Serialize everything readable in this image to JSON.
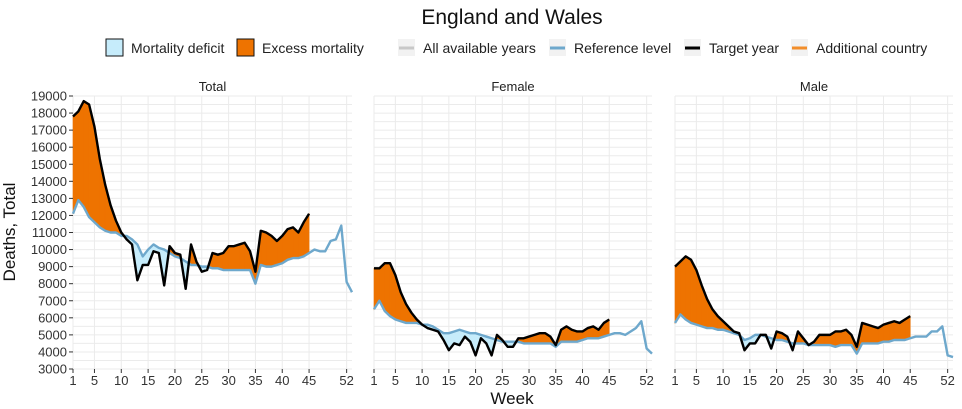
{
  "chart_data": {
    "type": "area",
    "title": "England and Wales",
    "xlabel": "Week",
    "ylabel": "Deaths, Total",
    "legend": {
      "placement": "top",
      "items": [
        {
          "label": "Mortality deficit",
          "kind": "fill",
          "color": "#c6ecfb"
        },
        {
          "label": "Excess mortality",
          "kind": "fill",
          "color": "#ee7300"
        },
        {
          "label": "All available years",
          "kind": "line",
          "color": "#c8c8c8"
        },
        {
          "label": "Reference level",
          "kind": "line",
          "color": "#6ea8cc"
        },
        {
          "label": "Target year",
          "kind": "line",
          "color": "#000000"
        },
        {
          "label": "Additional country",
          "kind": "line",
          "color": "#f28e2b"
        }
      ]
    },
    "x_ticks": [
      1,
      5,
      10,
      15,
      20,
      25,
      30,
      35,
      40,
      45,
      52
    ],
    "xlim": [
      1,
      53
    ],
    "grid": true,
    "colors": {
      "deficit": "#c6ecfb",
      "excess": "#ee7300",
      "reference": "#6ea8cc",
      "target": "#000000"
    },
    "panels": [
      {
        "name": "Total",
        "ylim": [
          3000,
          19000
        ],
        "y_ticks": [
          3000,
          4000,
          5000,
          6000,
          7000,
          8000,
          9000,
          10000,
          11000,
          12000,
          13000,
          14000,
          15000,
          16000,
          17000,
          18000,
          19000
        ],
        "target": [
          17800,
          18100,
          18700,
          18500,
          17200,
          15300,
          13800,
          12600,
          11700,
          11000,
          10600,
          10300,
          8200,
          9100,
          9100,
          9900,
          9800,
          7900,
          10200,
          9800,
          9700,
          7700,
          10300,
          9300,
          8700,
          8800,
          9800,
          9700,
          9800,
          10200,
          10200,
          10300,
          10400,
          9900,
          8700,
          11100,
          11000,
          10800,
          10500,
          10800,
          11200,
          11300,
          11000,
          11600,
          12100
        ],
        "reference": [
          12100,
          12900,
          12500,
          11900,
          11600,
          11300,
          11100,
          11000,
          11000,
          10800,
          10800,
          10600,
          10300,
          9600,
          10000,
          10300,
          10100,
          10000,
          9800,
          9600,
          9500,
          9300,
          9100,
          9100,
          9000,
          9000,
          8900,
          8900,
          8800,
          8800,
          8800,
          8800,
          8800,
          8800,
          8000,
          9100,
          9000,
          9000,
          9100,
          9200,
          9400,
          9500,
          9500,
          9600,
          9800,
          10000,
          9900,
          9900,
          10500,
          10600,
          11400,
          8100,
          7500
        ]
      },
      {
        "name": "Female",
        "ylim": [
          3000,
          19000
        ],
        "y_ticks": [],
        "target": [
          8900,
          8900,
          9200,
          9200,
          8500,
          7500,
          6800,
          6300,
          5900,
          5600,
          5400,
          5300,
          5200,
          4700,
          4100,
          4500,
          4400,
          4900,
          4600,
          3800,
          4800,
          4500,
          3800,
          5000,
          4700,
          4300,
          4300,
          4800,
          4800,
          4900,
          5000,
          5100,
          5100,
          4900,
          4400,
          5300,
          5500,
          5300,
          5200,
          5200,
          5400,
          5500,
          5300,
          5700,
          5900
        ],
        "reference": [
          6500,
          7000,
          6400,
          6100,
          5900,
          5800,
          5700,
          5700,
          5700,
          5600,
          5600,
          5500,
          5300,
          5100,
          5100,
          5200,
          5300,
          5200,
          5100,
          5100,
          5000,
          4900,
          4800,
          4700,
          4600,
          4600,
          4600,
          4600,
          4500,
          4500,
          4500,
          4500,
          4500,
          4500,
          4300,
          4600,
          4600,
          4600,
          4600,
          4700,
          4800,
          4800,
          4800,
          4900,
          5000,
          5100,
          5100,
          5000,
          5200,
          5400,
          5800,
          4200,
          3900
        ]
      },
      {
        "name": "Male",
        "ylim": [
          3000,
          19000
        ],
        "y_ticks": [],
        "target": [
          9000,
          9300,
          9600,
          9400,
          8800,
          7900,
          7100,
          6500,
          6100,
          5800,
          5500,
          5200,
          5100,
          4100,
          4500,
          4500,
          5000,
          5000,
          4200,
          5200,
          5100,
          4900,
          4100,
          5200,
          4800,
          4400,
          4600,
          5000,
          5000,
          5000,
          5200,
          5200,
          5300,
          5000,
          4300,
          5700,
          5600,
          5500,
          5400,
          5600,
          5700,
          5800,
          5700,
          5900,
          6100
        ],
        "reference": [
          5700,
          6200,
          5900,
          5700,
          5600,
          5500,
          5400,
          5400,
          5300,
          5300,
          5200,
          5100,
          5000,
          4700,
          4800,
          5000,
          5000,
          4900,
          4800,
          4700,
          4700,
          4600,
          4500,
          4500,
          4500,
          4400,
          4400,
          4400,
          4400,
          4400,
          4300,
          4400,
          4400,
          4400,
          3900,
          4500,
          4500,
          4500,
          4500,
          4600,
          4600,
          4700,
          4700,
          4700,
          4800,
          4900,
          4900,
          4900,
          5200,
          5200,
          5500,
          3800,
          3700
        ]
      }
    ]
  }
}
